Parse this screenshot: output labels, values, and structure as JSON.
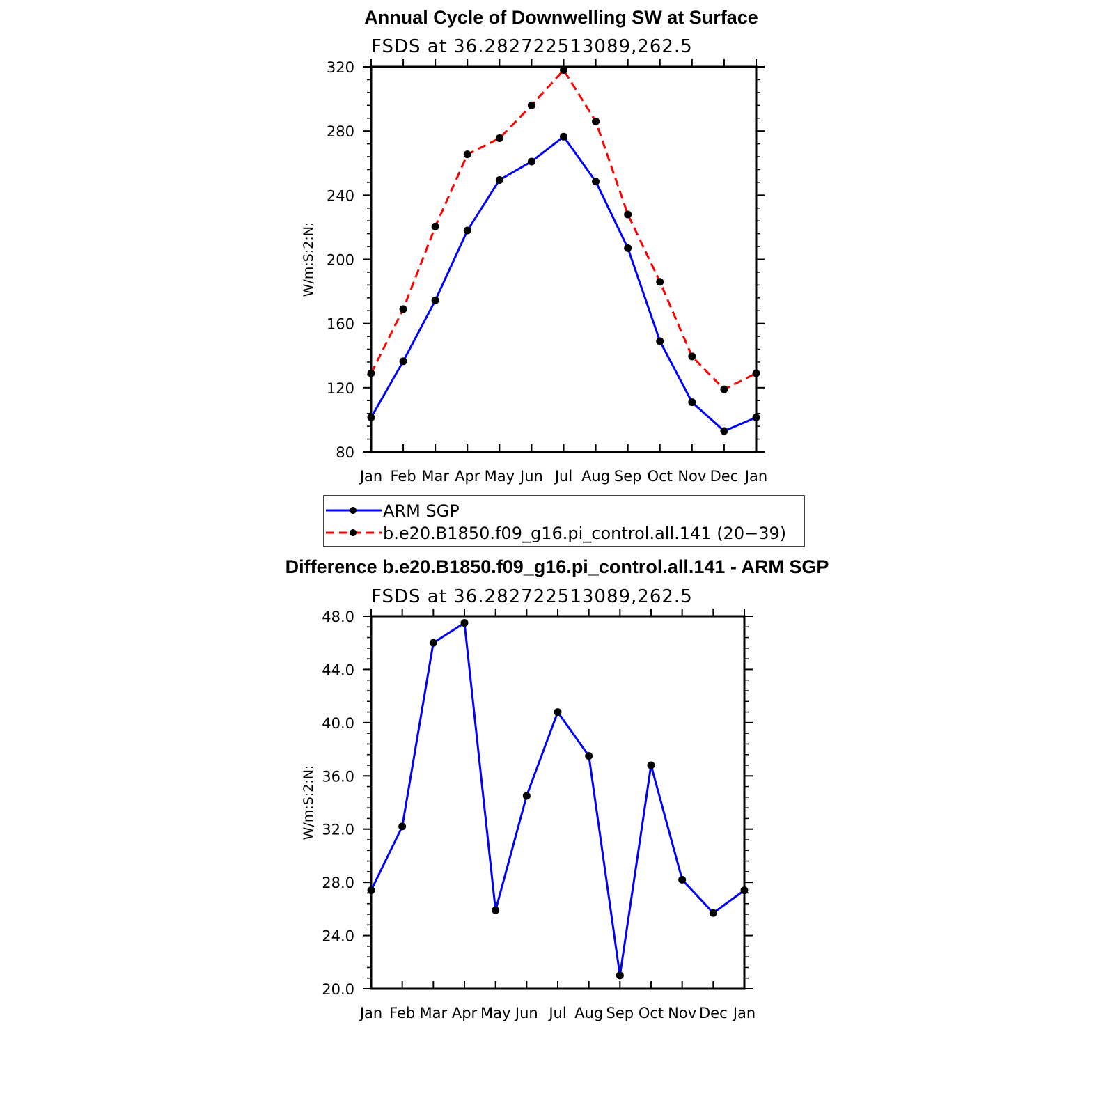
{
  "chart_data": [
    {
      "type": "line",
      "title": "Annual Cycle of Downwelling SW at Surface",
      "subtitle": "FSDS at 36.282722513089,262.5",
      "ylabel": "W/m:S:2:N:",
      "xlabel": "",
      "categories": [
        "Jan",
        "Feb",
        "Mar",
        "Apr",
        "May",
        "Jun",
        "Jul",
        "Aug",
        "Sep",
        "Oct",
        "Nov",
        "Dec",
        "Jan"
      ],
      "yticks": [
        "80",
        "120",
        "160",
        "200",
        "240",
        "280",
        "320"
      ],
      "ylim": [
        80,
        320
      ],
      "grid": false,
      "legend_position": "bottom",
      "series": [
        {
          "name": "ARM SGP",
          "color": "#0000ff",
          "dash": "solid",
          "values": [
            101.5,
            136.5,
            174.5,
            218,
            249.5,
            261,
            276.5,
            248.5,
            207,
            149,
            111,
            93,
            101.5
          ]
        },
        {
          "name": "b.e20.B1850.f09_g16.pi_control.all.141 (20−39)",
          "color": "#ff0000",
          "dash": "dashed",
          "values": [
            129,
            169,
            220.5,
            265.5,
            275.5,
            296,
            318,
            286,
            228,
            186,
            139.5,
            119,
            129
          ]
        }
      ]
    },
    {
      "type": "line",
      "title": "Difference b.e20.B1850.f09_g16.pi_control.all.141 - ARM SGP",
      "subtitle": "FSDS at 36.282722513089,262.5",
      "ylabel": "W/m:S:2:N:",
      "xlabel": "",
      "categories": [
        "Jan",
        "Feb",
        "Mar",
        "Apr",
        "May",
        "Jun",
        "Jul",
        "Aug",
        "Sep",
        "Oct",
        "Nov",
        "Dec",
        "Jan"
      ],
      "yticks": [
        "20.0",
        "24.0",
        "28.0",
        "32.0",
        "36.0",
        "40.0",
        "44.0",
        "48.0"
      ],
      "ylim": [
        20,
        48
      ],
      "grid": false,
      "series": [
        {
          "color": "#0000ff",
          "dash": "solid",
          "values": [
            27.4,
            32.2,
            46.0,
            47.5,
            25.9,
            34.5,
            40.8,
            37.5,
            21.0,
            36.8,
            28.2,
            25.7,
            27.4
          ]
        }
      ]
    }
  ]
}
